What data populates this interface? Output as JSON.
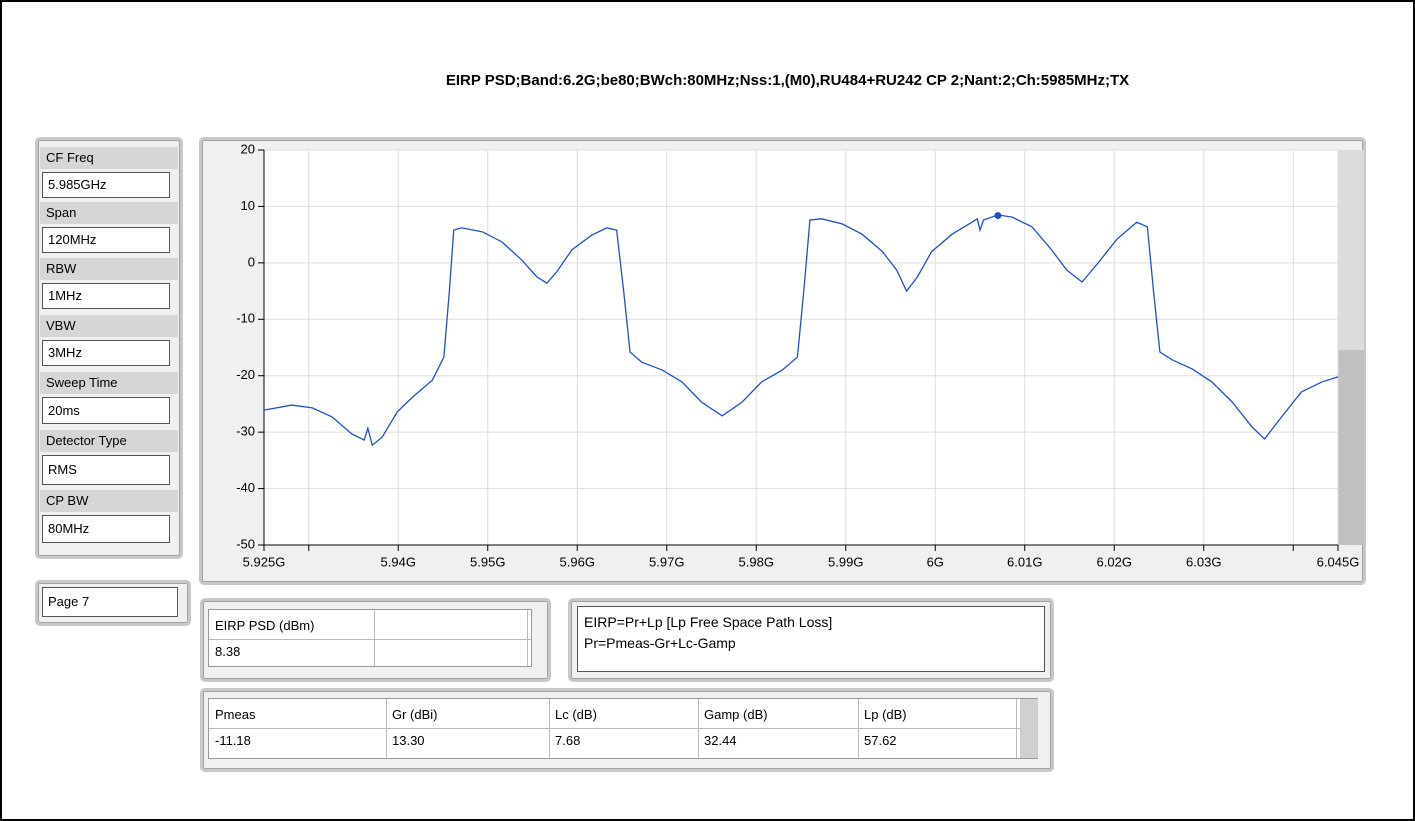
{
  "title": "EIRP PSD;Band:6.2G;be80;BWch:80MHz;Nss:1,(M0),RU484+RU242 CP 2;Nant:2;Ch:5985MHz;TX",
  "settings": [
    {
      "label": "CF Freq",
      "value": "5.985GHz"
    },
    {
      "label": "Span",
      "value": "120MHz"
    },
    {
      "label": "RBW",
      "value": "1MHz"
    },
    {
      "label": "VBW",
      "value": "3MHz"
    },
    {
      "label": "Sweep Time",
      "value": "20ms"
    },
    {
      "label": "Detector Type",
      "value": "RMS"
    },
    {
      "label": "CP BW",
      "value": "80MHz"
    }
  ],
  "page": "Page 7",
  "result": {
    "header": "EIRP PSD (dBm)",
    "value": "8.38"
  },
  "notes": [
    "EIRP=Pr+Lp [Lp Free Space Path Loss]",
    "Pr=Pmeas-Gr+Lc-Gamp"
  ],
  "params": {
    "headers": [
      "Pmeas",
      "Gr (dBi)",
      "Lc (dB)",
      "Gamp (dB)",
      "Lp (dB)"
    ],
    "values": [
      "-11.18",
      "13.30",
      "7.68",
      "32.44",
      "57.62"
    ]
  },
  "chart_data": {
    "type": "line",
    "color": "#1f4fd0",
    "grid": true,
    "x": [
      5.925,
      5.9281,
      5.9304,
      5.9326,
      5.9348,
      5.9362,
      5.9366,
      5.9371,
      5.9382,
      5.9399,
      5.9416,
      5.9438,
      5.9451,
      5.9457,
      5.9462,
      5.9471,
      5.9494,
      5.9516,
      5.9538,
      5.9555,
      5.9566,
      5.9577,
      5.9594,
      5.9616,
      5.9633,
      5.9644,
      5.9652,
      5.9659,
      5.9672,
      5.9695,
      5.9717,
      5.9739,
      5.9762,
      5.9784,
      5.9806,
      5.9829,
      5.9846,
      5.9853,
      5.986,
      5.9873,
      5.9896,
      5.9918,
      5.9941,
      5.9957,
      5.9968,
      5.998,
      5.9996,
      6.0019,
      6.0041,
      6.0047,
      6.005,
      6.0054,
      6.007,
      6.0086,
      6.0108,
      6.013,
      6.0147,
      6.0164,
      6.0181,
      6.0203,
      6.0225,
      6.0237,
      6.0244,
      6.0251,
      6.0265,
      6.0287,
      6.0309,
      6.0332,
      6.0354,
      6.0368,
      6.0387,
      6.0409,
      6.0432,
      6.045
    ],
    "values": [
      -26.1,
      -25.2,
      -25.7,
      -27.3,
      -30.3,
      -31.4,
      -29.3,
      -32.3,
      -30.9,
      -26.4,
      -23.8,
      -20.8,
      -16.7,
      -5.2,
      5.8,
      6.2,
      5.5,
      3.7,
      0.5,
      -2.5,
      -3.6,
      -1.6,
      2.3,
      4.9,
      6.2,
      5.8,
      -5.2,
      -15.8,
      -17.6,
      -19.0,
      -21.1,
      -24.7,
      -27.1,
      -24.7,
      -21.1,
      -19.0,
      -16.7,
      -5.2,
      7.6,
      7.8,
      6.9,
      5.1,
      2.0,
      -1.3,
      -5.0,
      -2.5,
      2.0,
      5.1,
      7.2,
      7.8,
      5.8,
      7.6,
      8.5,
      8.1,
      6.4,
      2.3,
      -1.3,
      -3.4,
      -0.2,
      4.2,
      7.2,
      6.4,
      -5.2,
      -15.8,
      -17.2,
      -18.8,
      -21.1,
      -24.7,
      -29.1,
      -31.2,
      -27.3,
      -22.9,
      -21.1,
      -20.2
    ],
    "marker": {
      "x": 6.007,
      "y": 8.38
    },
    "xlim": [
      5.925,
      6.045
    ],
    "xticks": [
      {
        "value": 5.925,
        "label": "5.925G"
      },
      {
        "value": 5.94,
        "label": "5.94G"
      },
      {
        "value": 5.95,
        "label": "5.95G"
      },
      {
        "value": 5.96,
        "label": "5.96G"
      },
      {
        "value": 5.97,
        "label": "5.97G"
      },
      {
        "value": 5.98,
        "label": "5.98G"
      },
      {
        "value": 5.99,
        "label": "5.99G"
      },
      {
        "value": 6,
        "label": "6G"
      },
      {
        "value": 6.01,
        "label": "6.01G"
      },
      {
        "value": 6.02,
        "label": "6.02G"
      },
      {
        "value": 6.03,
        "label": "6.03G"
      },
      {
        "value": 6.045,
        "label": "6.045G"
      }
    ],
    "xgrid": [
      5.93,
      6.04
    ],
    "ylim": [
      -50,
      20
    ],
    "yticks": [
      20,
      10,
      0,
      -10,
      -20,
      -30,
      -40,
      -50
    ]
  }
}
